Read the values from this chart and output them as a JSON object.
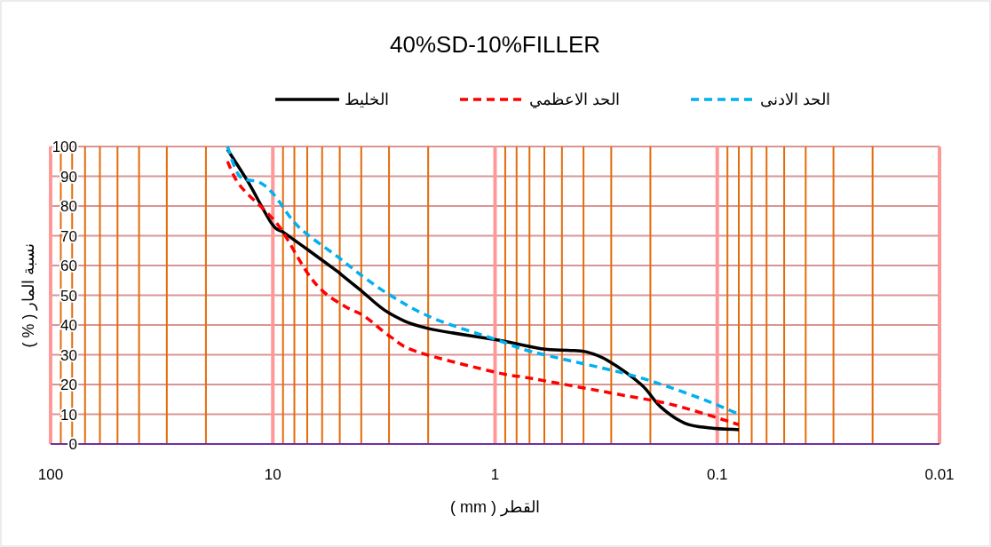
{
  "chart_data": {
    "type": "line",
    "title": "40%SD-10%FILLER",
    "xlabel": "القطر ( mm )",
    "ylabel": "نسبة المار ( % )",
    "log": "x",
    "xlim": [
      100,
      0.01
    ],
    "xticks": [
      100,
      {
        "value": 90,
        "label": null
      },
      {
        "value": 80,
        "label": null
      },
      {
        "value": 70,
        "label": null
      },
      {
        "value": 60,
        "label": null
      },
      {
        "value": 50,
        "label": null
      },
      {
        "value": 40,
        "label": null
      },
      {
        "value": 30,
        "label": null
      },
      {
        "value": 20,
        "label": null
      },
      10,
      {
        "value": 9,
        "label": null
      },
      {
        "value": 8,
        "label": null
      },
      {
        "value": 7,
        "label": null
      },
      {
        "value": 6,
        "label": null
      },
      {
        "value": 5,
        "label": null
      },
      {
        "value": 4,
        "label": null
      },
      {
        "value": 3,
        "label": null
      },
      {
        "value": 2,
        "label": null
      },
      1,
      {
        "value": 0.9,
        "label": null
      },
      {
        "value": 0.8,
        "label": null
      },
      {
        "value": 0.7,
        "label": null
      },
      {
        "value": 0.6,
        "label": null
      },
      {
        "value": 0.5,
        "label": null
      },
      {
        "value": 0.4,
        "label": null
      },
      {
        "value": 0.3,
        "label": null
      },
      {
        "value": 0.2,
        "label": null
      },
      {
        "value": 0.1,
        "label": "0.1"
      },
      {
        "value": 0.09,
        "label": null
      },
      {
        "value": 0.08,
        "label": null
      },
      {
        "value": 0.07,
        "label": null
      },
      {
        "value": 0.06,
        "label": null
      },
      {
        "value": 0.05,
        "label": null
      },
      {
        "value": 0.04,
        "label": null
      },
      {
        "value": 0.03,
        "label": null
      },
      {
        "value": 0.02,
        "label": null
      },
      {
        "value": 0.01,
        "label": "0.01"
      }
    ],
    "ylim": [
      0,
      100
    ],
    "yticks": [
      0,
      10,
      20,
      30,
      40,
      50,
      60,
      70,
      80,
      90,
      100
    ],
    "grid": true,
    "legend": "top",
    "marker": "none",
    "series": [
      {
        "name": "الخليط",
        "color": "#000000",
        "line_style": "solid",
        "x": [
          16.0,
          12.9,
          10.1,
          8.9,
          6.87,
          5.12,
          4.93,
          4.07,
          3.0,
          2.04,
          0.98,
          0.62,
          0.47,
          0.39,
          0.31,
          0.22,
          0.18,
          0.14,
          0.107,
          0.08
        ],
        "values": [
          99,
          88,
          74,
          71,
          65,
          58,
          57,
          52,
          44,
          39,
          35,
          32,
          31.5,
          31,
          28,
          20,
          12.5,
          7,
          5.4,
          4.8
        ]
      },
      {
        "name": "الحد الاعظمي",
        "color": "#ff0000",
        "line_style": "dashed",
        "x": [
          16.0,
          14.1,
          10.7,
          9.14,
          7.06,
          5.88,
          4.67,
          3.88,
          2.95,
          2.24,
          0.98,
          0.68,
          0.27,
          0.155,
          0.08
        ],
        "values": [
          95,
          87,
          78,
          72,
          58,
          51,
          46,
          43,
          36,
          31,
          24,
          22,
          16.5,
          13,
          6.5
        ]
      },
      {
        "name": "الحد الادنى",
        "color": "#00b0f0",
        "line_style": "dashed",
        "x": [
          16.0,
          14.1,
          11.5,
          9.93,
          8.11,
          6.87,
          5.12,
          3.88,
          2.82,
          1.86,
          0.98,
          0.68,
          0.27,
          0.17,
          0.107,
          0.08
        ],
        "values": [
          100,
          90,
          88,
          84,
          75,
          70,
          63,
          56,
          49,
          42,
          35,
          31,
          24,
          19.5,
          14,
          10
        ]
      }
    ]
  }
}
